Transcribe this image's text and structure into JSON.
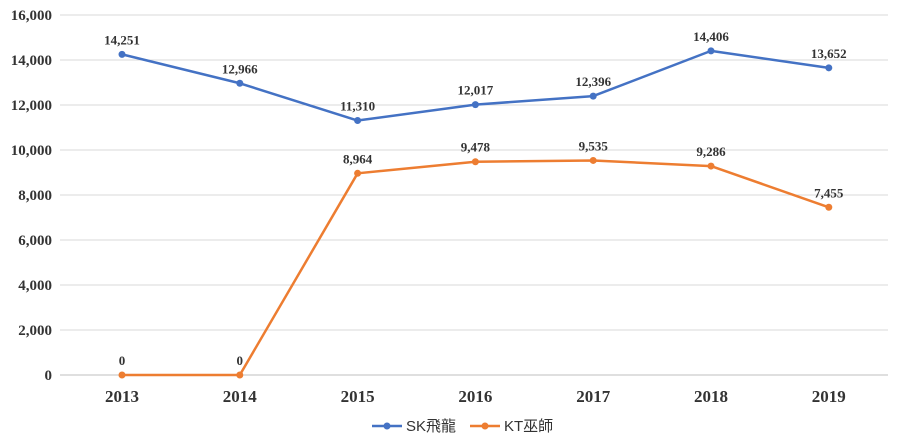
{
  "chart_data": {
    "type": "line",
    "categories": [
      "2013",
      "2014",
      "2015",
      "2016",
      "2017",
      "2018",
      "2019"
    ],
    "series": [
      {
        "name": "SK飛龍",
        "color": "#4472c4",
        "values": [
          14251,
          12966,
          11310,
          12017,
          12396,
          14406,
          13652
        ],
        "labels": [
          "14,251",
          "12,966",
          "11,310",
          "12,017",
          "12,396",
          "14,406",
          "13,652"
        ]
      },
      {
        "name": "KT巫師",
        "color": "#ed7d31",
        "values": [
          0,
          0,
          8964,
          9478,
          9535,
          9286,
          7455
        ],
        "labels": [
          "0",
          "0",
          "8,964",
          "9,478",
          "9,535",
          "9,286",
          "7,455"
        ]
      }
    ],
    "ylim": [
      0,
      16000
    ],
    "yticks": [
      0,
      2000,
      4000,
      6000,
      8000,
      10000,
      12000,
      14000,
      16000
    ],
    "ytick_labels": [
      "0",
      "2,000",
      "4,000",
      "6,000",
      "8,000",
      "10,000",
      "12,000",
      "14,000",
      "16,000"
    ],
    "grid": true,
    "legend_position": "bottom"
  }
}
